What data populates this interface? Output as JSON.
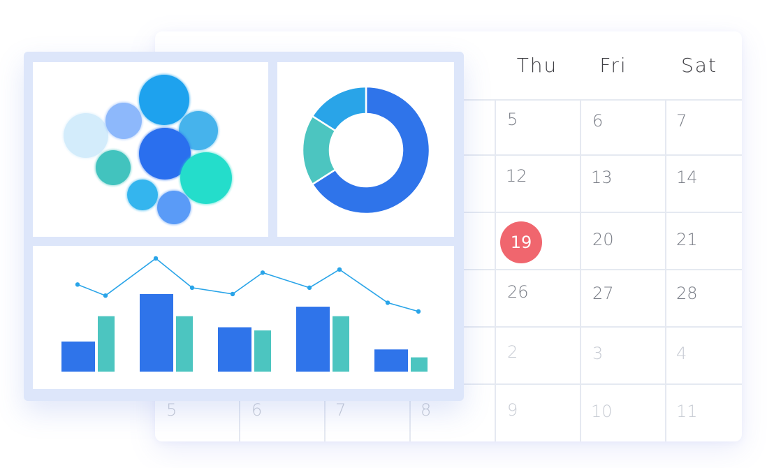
{
  "calendar": {
    "weekday_header": {
      "partial": "E",
      "thu": "Thu",
      "fri": "Fri",
      "sat": "Sat"
    },
    "rows": [
      {
        "thu": "5",
        "fri": "6",
        "sat": "7"
      },
      {
        "thu": "12",
        "fri": "13",
        "sat": "14"
      },
      {
        "thu": "19",
        "fri": "20",
        "sat": "21"
      },
      {
        "thu": "26",
        "fri": "27",
        "sat": "28"
      },
      {
        "thu": "2",
        "fri": "3",
        "sat": "4"
      },
      {
        "sun": "5",
        "mon": "6",
        "tue": "7",
        "wed": "8",
        "thu": "9",
        "fri": "10",
        "sat": "11"
      }
    ],
    "today_color": "#f0666e"
  },
  "dashboard": {
    "colors": {
      "blue": "#2f74ea",
      "teal": "#4cc5c0",
      "sky": "#29a4e8",
      "frame": "#dde6fa"
    },
    "bubbles": [
      {
        "color": "#d3ecfb"
      },
      {
        "color": "#8db8fb"
      },
      {
        "color": "#1ea2ee"
      },
      {
        "color": "#46b3ec"
      },
      {
        "color": "#2a6fee"
      },
      {
        "color": "#42c3be"
      },
      {
        "color": "#24ddcb"
      },
      {
        "color": "#34b5ee"
      },
      {
        "color": "#5a9bf7"
      }
    ]
  },
  "chart_data": [
    {
      "type": "pie",
      "values": [
        66,
        18,
        16
      ],
      "colors": [
        "#2f74ea",
        "#4cc5c0",
        "#29a4e8"
      ]
    },
    {
      "type": "bar",
      "categories": [
        "",
        "",
        "",
        "",
        ""
      ],
      "series": [
        {
          "values": [
            38,
            98,
            56,
            82,
            28
          ],
          "color": "#2f74ea"
        },
        {
          "values": [
            70,
            70,
            52,
            70,
            18
          ],
          "color": "#4cc5c0"
        }
      ],
      "line": {
        "values": [
          110,
          96,
          143,
          106,
          98,
          125,
          106,
          129,
          87,
          76
        ],
        "color": "#29a4e8"
      },
      "ylim": [
        0,
        150
      ]
    }
  ]
}
